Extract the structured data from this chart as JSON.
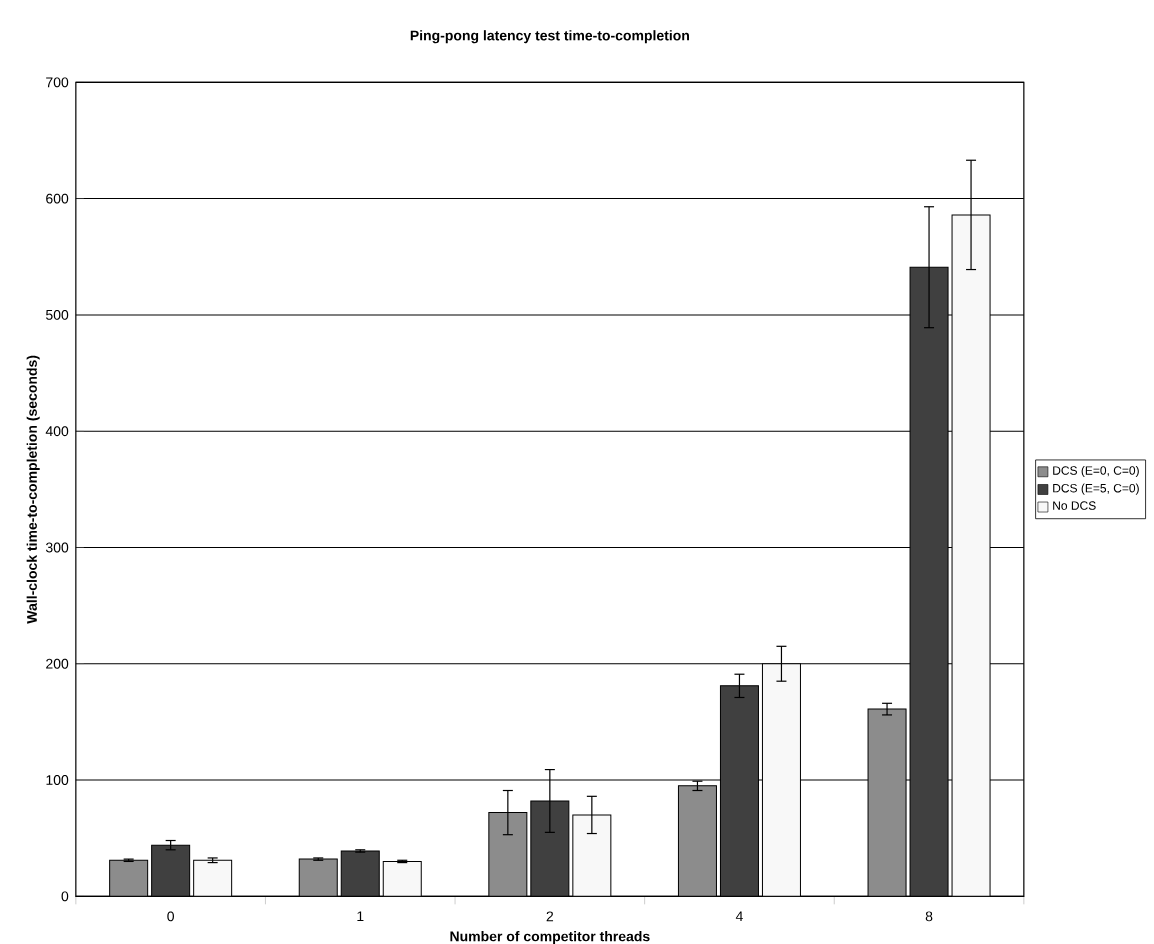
{
  "chart_data": {
    "type": "bar",
    "title": "Ping-pong latency test time-to-completion",
    "xlabel": "Number of competitor threads",
    "ylabel": "Wall-clock time-to-completion (seconds)",
    "categories": [
      "0",
      "1",
      "2",
      "4",
      "8"
    ],
    "series": [
      {
        "name": "DCS (E=0, C=0)",
        "color": "#8c8c8c",
        "values": [
          31,
          32,
          72,
          95,
          161
        ],
        "errors": [
          1,
          1,
          19,
          4,
          5
        ]
      },
      {
        "name": "DCS (E=5, C=0)",
        "color": "#404040",
        "values": [
          44,
          39,
          82,
          181,
          541
        ],
        "errors": [
          4,
          1,
          27,
          10,
          52
        ]
      },
      {
        "name": "No DCS",
        "color": "#f8f8f8",
        "values": [
          31,
          30,
          70,
          200,
          586
        ],
        "errors": [
          2,
          1,
          16,
          15,
          47
        ]
      }
    ],
    "ylim": [
      0,
      700
    ],
    "yticks": [
      0,
      100,
      200,
      300,
      400,
      500,
      600,
      700
    ],
    "grid": "y",
    "legend": "right"
  }
}
